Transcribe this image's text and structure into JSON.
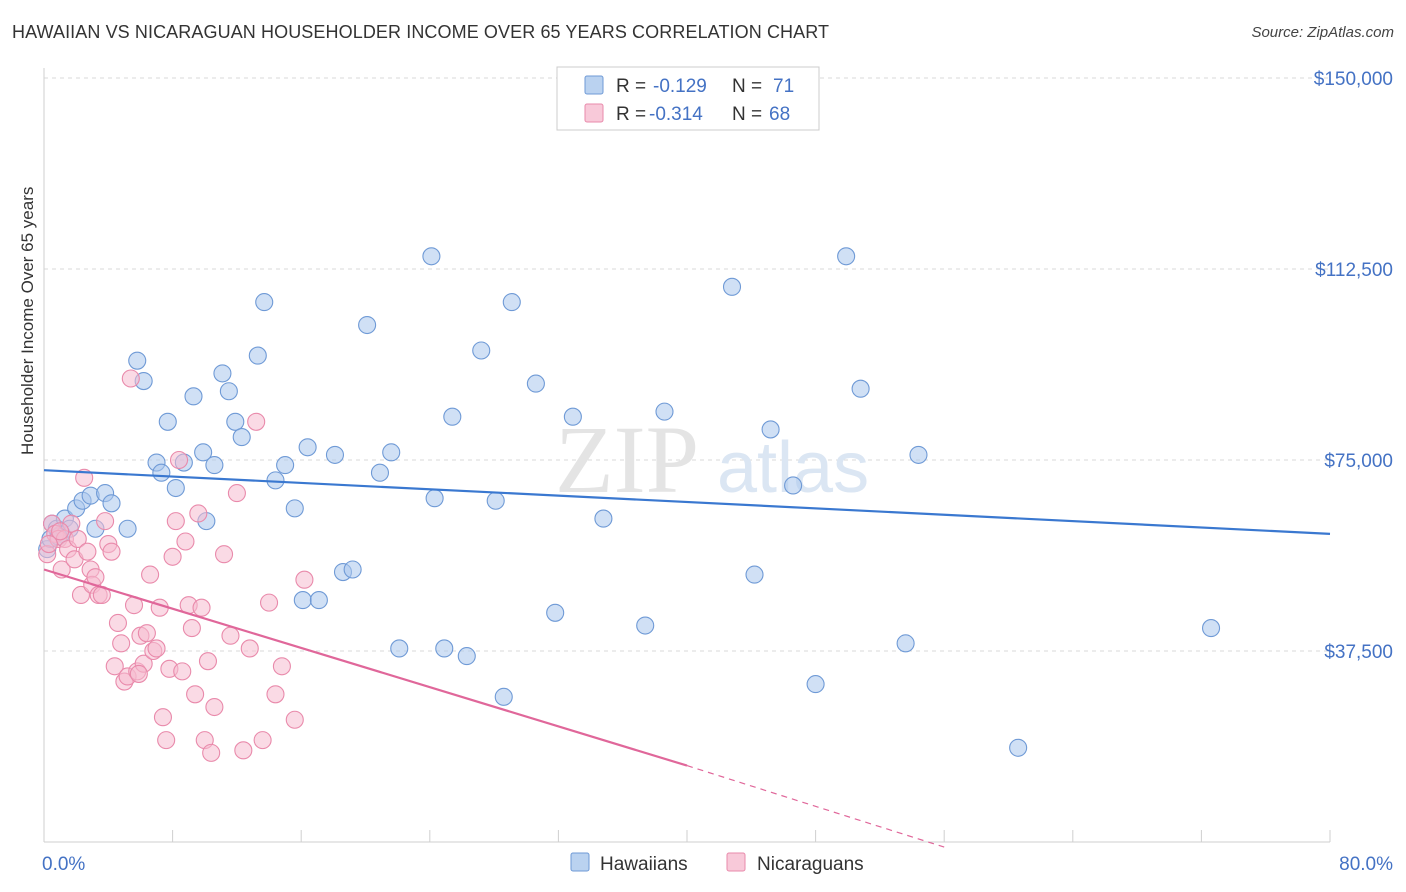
{
  "title": "HAWAIIAN VS NICARAGUAN HOUSEHOLDER INCOME OVER 65 YEARS CORRELATION CHART",
  "source": "Source: ZipAtlas.com",
  "watermark": {
    "zip": "ZIP",
    "atlas": "atlas"
  },
  "colors": {
    "hawaiian_fill": "#a9c7ec",
    "hawaiian_stroke": "#6f9ad6",
    "hawaiian_line": "#3a78d0",
    "nicaraguan_fill": "#f6bcd0",
    "nicaraguan_stroke": "#e98aab",
    "nicaraguan_line": "#e0679a",
    "tick_label": "#4472c4",
    "grid": "#d9d9d9"
  },
  "legend": {
    "rows": [
      {
        "r_label": "R =",
        "r_value": "-0.129",
        "n_label": "N =",
        "n_value": "71"
      },
      {
        "r_label": "R =",
        "r_value": "-0.314",
        "n_label": "N =",
        "n_value": "68"
      }
    ]
  },
  "bottom_legend": [
    "Hawaiians",
    "Nicaraguans"
  ],
  "chart_data": {
    "type": "scatter",
    "ylabel": "Householder Income Over 65 years",
    "xlim": [
      0,
      80
    ],
    "ylim": [
      0,
      150000
    ],
    "x_tick_labels": [
      "0.0%",
      "80.0%"
    ],
    "y_ticks": [
      37500,
      75000,
      112500,
      150000
    ],
    "y_tick_labels": [
      "$37,500",
      "$75,000",
      "$112,500",
      "$150,000"
    ],
    "grid": true,
    "series": [
      {
        "name": "Hawaiians",
        "trend": {
          "x": [
            0,
            80
          ],
          "y": [
            73000,
            60500
          ]
        },
        "points": [
          [
            0.2,
            57500
          ],
          [
            0.5,
            62500
          ],
          [
            0.8,
            61500
          ],
          [
            1.1,
            60500
          ],
          [
            1.3,
            63500
          ],
          [
            1.6,
            61500
          ],
          [
            2.0,
            65500
          ],
          [
            2.4,
            67000
          ],
          [
            2.9,
            68000
          ],
          [
            3.2,
            61500
          ],
          [
            3.8,
            68500
          ],
          [
            4.2,
            66500
          ],
          [
            5.2,
            61500
          ],
          [
            5.8,
            94500
          ],
          [
            6.2,
            90500
          ],
          [
            7.0,
            74500
          ],
          [
            7.3,
            72500
          ],
          [
            7.7,
            82500
          ],
          [
            8.2,
            69500
          ],
          [
            8.7,
            74500
          ],
          [
            9.3,
            87500
          ],
          [
            9.9,
            76500
          ],
          [
            10.1,
            63000
          ],
          [
            10.6,
            74000
          ],
          [
            11.1,
            92000
          ],
          [
            11.5,
            88500
          ],
          [
            11.9,
            82500
          ],
          [
            12.3,
            79500
          ],
          [
            13.3,
            95500
          ],
          [
            13.7,
            106000
          ],
          [
            14.4,
            71000
          ],
          [
            15.0,
            74000
          ],
          [
            15.6,
            65500
          ],
          [
            16.1,
            47500
          ],
          [
            16.4,
            77500
          ],
          [
            17.1,
            47500
          ],
          [
            18.1,
            76000
          ],
          [
            18.6,
            53000
          ],
          [
            19.2,
            53500
          ],
          [
            20.1,
            101500
          ],
          [
            20.9,
            72500
          ],
          [
            21.6,
            76500
          ],
          [
            22.1,
            38000
          ],
          [
            24.1,
            115000
          ],
          [
            24.3,
            67500
          ],
          [
            24.9,
            38000
          ],
          [
            25.4,
            83500
          ],
          [
            26.3,
            36500
          ],
          [
            27.2,
            96500
          ],
          [
            28.1,
            67000
          ],
          [
            28.6,
            28500
          ],
          [
            29.1,
            106000
          ],
          [
            30.6,
            90000
          ],
          [
            31.8,
            45000
          ],
          [
            32.9,
            83500
          ],
          [
            34.8,
            63500
          ],
          [
            37.4,
            42500
          ],
          [
            38.6,
            84500
          ],
          [
            42.8,
            109000
          ],
          [
            44.2,
            52500
          ],
          [
            45.2,
            81000
          ],
          [
            46.6,
            70000
          ],
          [
            48.0,
            31000
          ],
          [
            49.9,
            115000
          ],
          [
            50.8,
            89000
          ],
          [
            53.6,
            39000
          ],
          [
            54.4,
            76000
          ],
          [
            60.6,
            18500
          ],
          [
            72.6,
            42000
          ],
          [
            0.4,
            59500
          ],
          [
            0.9,
            60000
          ]
        ]
      },
      {
        "name": "Nicaraguans",
        "trend": {
          "x": [
            0,
            40
          ],
          "y": [
            53500,
            15000
          ]
        },
        "trend_dashed": {
          "x": [
            40,
            56
          ],
          "y": [
            15000,
            -1000
          ]
        },
        "points": [
          [
            0.2,
            56500
          ],
          [
            0.5,
            62500
          ],
          [
            0.7,
            60500
          ],
          [
            0.9,
            59500
          ],
          [
            1.1,
            53500
          ],
          [
            1.3,
            59500
          ],
          [
            1.5,
            57500
          ],
          [
            1.7,
            62500
          ],
          [
            1.9,
            55500
          ],
          [
            2.1,
            59500
          ],
          [
            2.3,
            48500
          ],
          [
            2.5,
            71500
          ],
          [
            2.7,
            57000
          ],
          [
            2.9,
            53500
          ],
          [
            3.0,
            50500
          ],
          [
            3.2,
            52000
          ],
          [
            3.4,
            48500
          ],
          [
            3.6,
            48500
          ],
          [
            3.8,
            63000
          ],
          [
            4.0,
            58500
          ],
          [
            4.2,
            57000
          ],
          [
            4.4,
            34500
          ],
          [
            4.6,
            43000
          ],
          [
            4.8,
            39000
          ],
          [
            5.0,
            31500
          ],
          [
            5.2,
            32500
          ],
          [
            5.4,
            91000
          ],
          [
            5.6,
            46500
          ],
          [
            5.8,
            33500
          ],
          [
            6.0,
            40500
          ],
          [
            6.2,
            35000
          ],
          [
            6.4,
            41000
          ],
          [
            6.6,
            52500
          ],
          [
            6.8,
            37500
          ],
          [
            7.0,
            38000
          ],
          [
            7.2,
            46000
          ],
          [
            7.4,
            24500
          ],
          [
            7.6,
            20000
          ],
          [
            7.8,
            34000
          ],
          [
            8.0,
            56000
          ],
          [
            8.2,
            63000
          ],
          [
            8.4,
            75000
          ],
          [
            8.6,
            33500
          ],
          [
            8.8,
            59000
          ],
          [
            9.0,
            46500
          ],
          [
            9.2,
            42000
          ],
          [
            9.4,
            29000
          ],
          [
            9.6,
            64500
          ],
          [
            9.8,
            46000
          ],
          [
            10.0,
            20000
          ],
          [
            10.2,
            35500
          ],
          [
            10.4,
            17500
          ],
          [
            10.6,
            26500
          ],
          [
            11.2,
            56500
          ],
          [
            11.6,
            40500
          ],
          [
            12.0,
            68500
          ],
          [
            12.4,
            18000
          ],
          [
            12.8,
            38000
          ],
          [
            13.2,
            82500
          ],
          [
            13.6,
            20000
          ],
          [
            14.0,
            47000
          ],
          [
            14.4,
            29000
          ],
          [
            14.8,
            34500
          ],
          [
            15.6,
            24000
          ],
          [
            16.2,
            51500
          ],
          [
            5.9,
            33000
          ],
          [
            1.0,
            61000
          ],
          [
            0.3,
            58500
          ]
        ]
      }
    ]
  }
}
